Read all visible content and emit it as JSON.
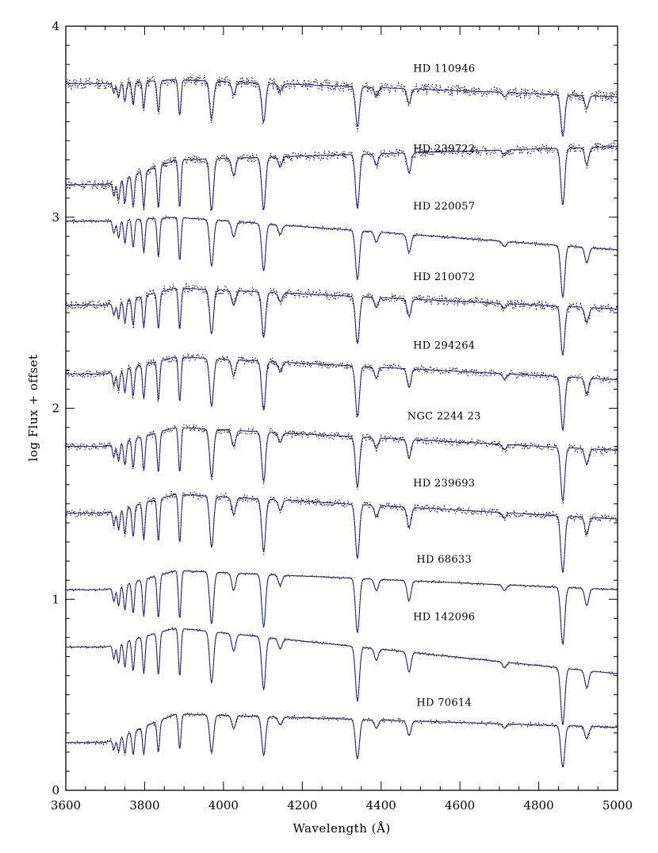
{
  "chart_data": {
    "type": "line",
    "xlabel": "Wavelength (Å)",
    "ylabel": "log Flux + offset",
    "xlim": [
      3600,
      5000
    ],
    "ylim": [
      0,
      4
    ],
    "x_ticks": [
      3600,
      3800,
      4000,
      4200,
      4400,
      4600,
      4800,
      5000
    ],
    "y_ticks": [
      0,
      1,
      2,
      3,
      4
    ],
    "grid": false,
    "legend": "none",
    "colors": {
      "observed": "#000000",
      "model": "#1c1c9e"
    },
    "absorption_lines_angstrom": [
      3722,
      3734,
      3750,
      3771,
      3798,
      3835,
      3889,
      3970,
      4026,
      4102,
      4144,
      4340,
      4388,
      4471,
      4713,
      4861,
      4922
    ],
    "series": [
      {
        "name": "HD 110946",
        "offset": 3.72,
        "start": 3.7,
        "end": 3.63,
        "depth": 0.22,
        "noise": 0.03
      },
      {
        "name": "HD 239722",
        "offset": 3.3,
        "start": 3.17,
        "end": 3.37,
        "depth": 0.3,
        "noise": 0.025
      },
      {
        "name": "HD 220057",
        "offset": 3.0,
        "start": 2.98,
        "end": 2.83,
        "depth": 0.27,
        "noise": 0.008
      },
      {
        "name": "HD 210072",
        "offset": 2.63,
        "start": 2.54,
        "end": 2.52,
        "depth": 0.26,
        "noise": 0.025
      },
      {
        "name": "HD 294264",
        "offset": 2.27,
        "start": 2.18,
        "end": 2.15,
        "depth": 0.28,
        "noise": 0.02
      },
      {
        "name": "NGC 2244 23",
        "offset": 1.9,
        "start": 1.8,
        "end": 1.78,
        "depth": 0.28,
        "noise": 0.02
      },
      {
        "name": "HD 239693",
        "offset": 1.55,
        "start": 1.45,
        "end": 1.42,
        "depth": 0.3,
        "noise": 0.02
      },
      {
        "name": "HD 68633",
        "offset": 1.15,
        "start": 1.05,
        "end": 1.05,
        "depth": 0.3,
        "noise": 0.006
      },
      {
        "name": "HD 142096",
        "offset": 0.85,
        "start": 0.75,
        "end": 0.61,
        "depth": 0.3,
        "noise": 0.006
      },
      {
        "name": "HD 70614",
        "offset": 0.4,
        "start": 0.25,
        "end": 0.33,
        "depth": 0.22,
        "noise": 0.01
      }
    ]
  }
}
